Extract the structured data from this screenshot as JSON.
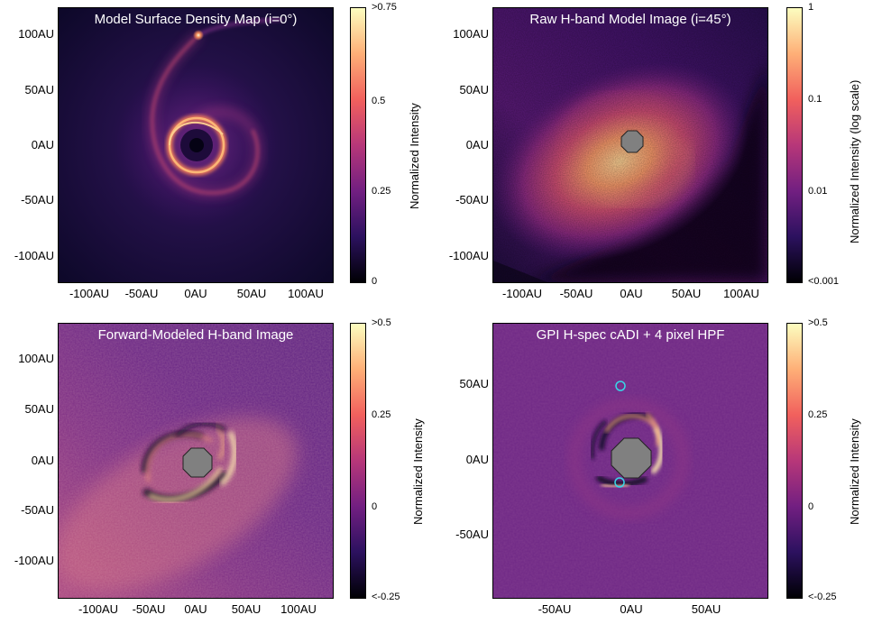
{
  "panels": [
    {
      "title": "Model Surface Density Map (i=0°)",
      "yticks": [
        "100AU",
        "50AU",
        "0AU",
        "-50AU",
        "-100AU"
      ],
      "xticks": [
        "-100AU",
        "-50AU",
        "0AU",
        "50AU",
        "100AU"
      ],
      "colorbar": {
        "ticks": [
          ">0.75",
          "0.5",
          "0.25",
          "0"
        ],
        "label": "Normalized Intensity"
      }
    },
    {
      "title": "Raw H-band Model Image  (i=45°)",
      "yticks": [
        "100AU",
        "50AU",
        "0AU",
        "-50AU",
        "-100AU"
      ],
      "xticks": [
        "-100AU",
        "-50AU",
        "0AU",
        "50AU",
        "100AU"
      ],
      "colorbar": {
        "ticks": [
          "1",
          "0.1",
          "0.01",
          "<0.001"
        ],
        "label": "Normalized Intensity (log scale)"
      }
    },
    {
      "title": "Forward-Modeled H-band Image",
      "yticks": [
        "100AU",
        "50AU",
        "0AU",
        "-50AU",
        "-100AU"
      ],
      "xticks": [
        "-100AU",
        "-50AU",
        "0AU",
        "50AU",
        "100AU"
      ],
      "colorbar": {
        "ticks": [
          ">0.5",
          "0.25",
          "0",
          "<-0.25"
        ],
        "label": "Normalized Intensity"
      }
    },
    {
      "title": "GPI H-spec cADI + 4 pixel HPF",
      "yticks": [
        "50AU",
        "0AU",
        "-50AU"
      ],
      "xticks": [
        "-50AU",
        "0AU",
        "50AU"
      ],
      "colorbar": {
        "ticks": [
          ">0.5",
          "0.25",
          "0",
          "<-0.25"
        ],
        "label": "Normalized Intensity"
      }
    }
  ],
  "colors": {
    "colormap": "magma",
    "mask": "#808080",
    "marker": "#38d8e8"
  }
}
